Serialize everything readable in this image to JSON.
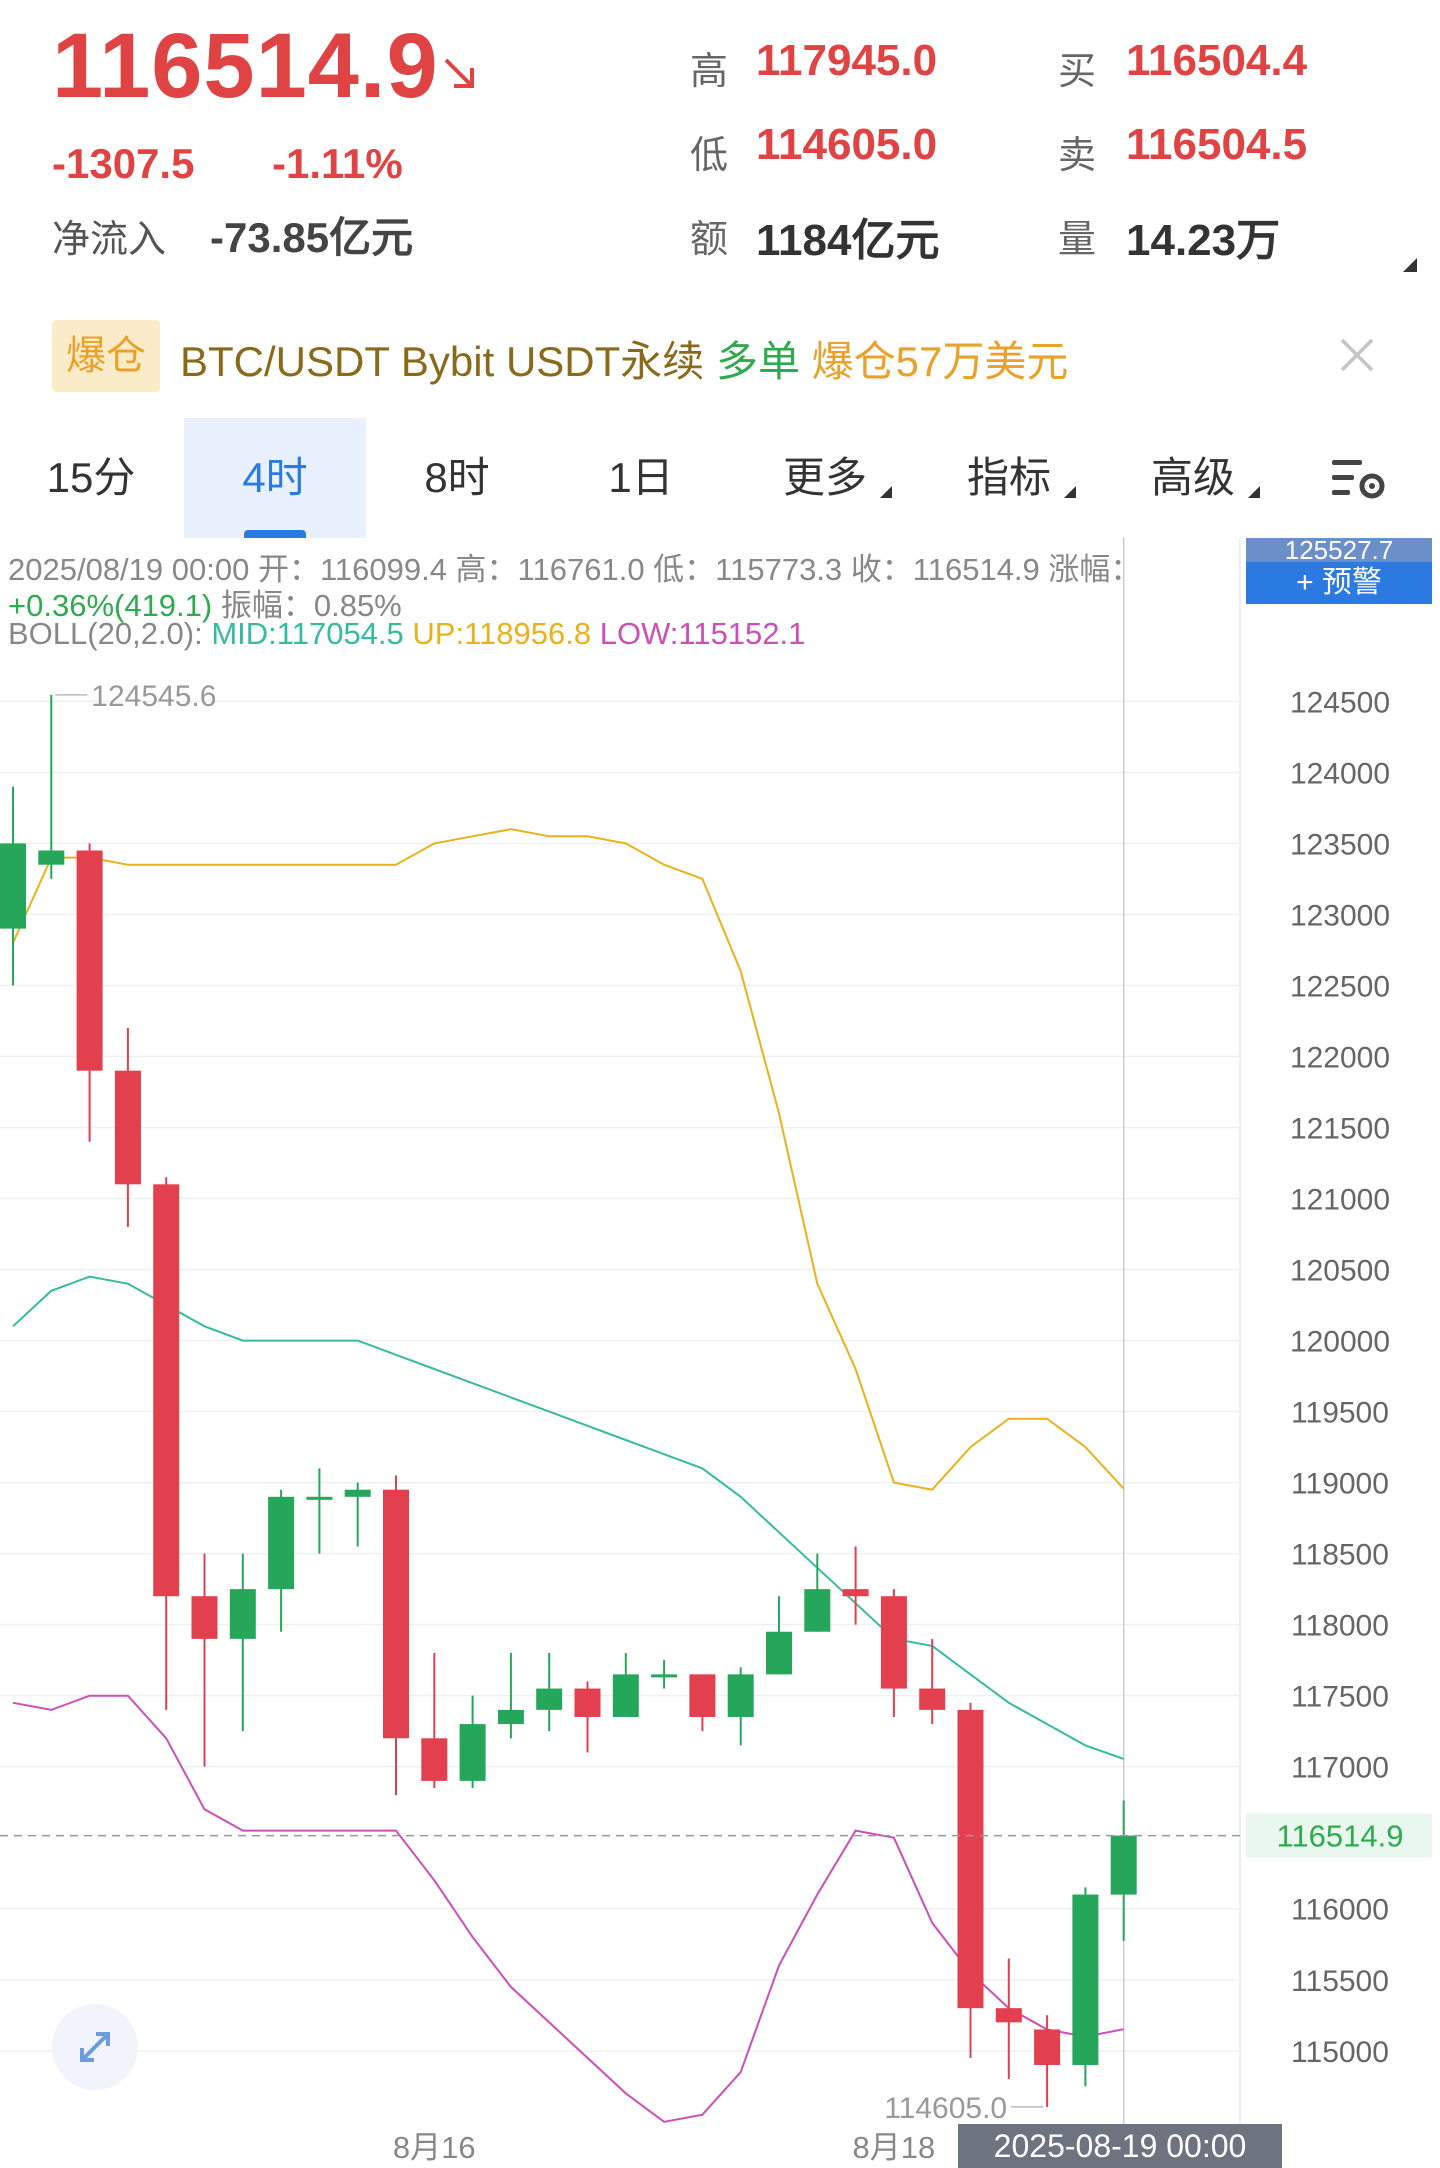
{
  "quote": {
    "price": "116514.9",
    "change": "-1307.5",
    "change_pct": "-1.11%",
    "inflow_label": "净流入",
    "inflow_value": "-73.85亿元",
    "high_label": "高",
    "high": "117945.0",
    "low_label": "低",
    "low": "114605.0",
    "amount_label": "额",
    "amount": "1184亿元",
    "bid_label": "买",
    "bid": "116504.4",
    "ask_label": "卖",
    "ask": "116504.5",
    "volume_label": "量",
    "volume": "14.23万",
    "trend_icon": "arrow-down-right-icon"
  },
  "banner": {
    "badge": "爆仓",
    "pair": "BTC/USDT Bybit USDT永续",
    "side": "多单",
    "amount": "爆仓57万美元",
    "close_icon": "close-icon"
  },
  "tabs": [
    {
      "label": "15分",
      "active": false
    },
    {
      "label": "4时",
      "active": true
    },
    {
      "label": "8时",
      "active": false
    },
    {
      "label": "1日",
      "active": false
    },
    {
      "label": "更多",
      "active": false,
      "dropdown": true
    },
    {
      "label": "指标",
      "active": false,
      "dropdown": true
    },
    {
      "label": "高级",
      "active": false,
      "dropdown": true
    }
  ],
  "info": {
    "line1": "2025/08/19 00:00 开：116099.4 高：116761.0 低：115773.3 收：116514.9 涨幅：",
    "pct": "+0.36%(419.1)",
    "amplitude": " 振幅：0.85%",
    "boll_prefix": "BOLL(20,2.0): ",
    "boll_mid": "MID:117054.5",
    "boll_up": "UP:118956.8",
    "boll_low": "LOW:115152.1",
    "alert_button": "+ 预警",
    "alert_top_value": "125527.7"
  },
  "chart_data": {
    "type": "candlestick",
    "y_range": [
      114400,
      125650
    ],
    "y_ticks": [
      124500,
      124000,
      123500,
      123000,
      122500,
      122000,
      121500,
      121000,
      120500,
      120000,
      119500,
      119000,
      118500,
      118000,
      117500,
      117000,
      116000,
      115500,
      115000
    ],
    "current_price": 116514.9,
    "current_price_label": "116514.9",
    "max_label": "124545.6",
    "min_label": "114605.0",
    "x_labels": [
      {
        "label": "8月16",
        "index": 11
      },
      {
        "label": "8月18",
        "index": 23
      }
    ],
    "crosshair_label": "2025-08-19 00:00",
    "candles": [
      {
        "o": 122900,
        "h": 123900,
        "l": 122500,
        "c": 123500
      },
      {
        "o": 123350,
        "h": 124545.6,
        "l": 123250,
        "c": 123450
      },
      {
        "o": 123450,
        "h": 123500,
        "l": 121400,
        "c": 121900
      },
      {
        "o": 121900,
        "h": 122200,
        "l": 120800,
        "c": 121100
      },
      {
        "o": 121100,
        "h": 121150,
        "l": 117400,
        "c": 118200
      },
      {
        "o": 118200,
        "h": 118500,
        "l": 117000,
        "c": 117900
      },
      {
        "o": 117900,
        "h": 118500,
        "l": 117250,
        "c": 118250
      },
      {
        "o": 118250,
        "h": 118950,
        "l": 117950,
        "c": 118900
      },
      {
        "o": 118900,
        "h": 119100,
        "l": 118500,
        "c": 118900
      },
      {
        "o": 118900,
        "h": 119000,
        "l": 118550,
        "c": 118950
      },
      {
        "o": 118950,
        "h": 119050,
        "l": 116800,
        "c": 117200
      },
      {
        "o": 117200,
        "h": 117800,
        "l": 116850,
        "c": 116900
      },
      {
        "o": 116900,
        "h": 117500,
        "l": 116850,
        "c": 117300
      },
      {
        "o": 117300,
        "h": 117800,
        "l": 117200,
        "c": 117400
      },
      {
        "o": 117400,
        "h": 117800,
        "l": 117250,
        "c": 117550
      },
      {
        "o": 117550,
        "h": 117600,
        "l": 117100,
        "c": 117350
      },
      {
        "o": 117350,
        "h": 117800,
        "l": 117350,
        "c": 117650
      },
      {
        "o": 117650,
        "h": 117750,
        "l": 117550,
        "c": 117650
      },
      {
        "o": 117650,
        "h": 117650,
        "l": 117250,
        "c": 117350
      },
      {
        "o": 117350,
        "h": 117700,
        "l": 117150,
        "c": 117650
      },
      {
        "o": 117650,
        "h": 118200,
        "l": 117650,
        "c": 117950
      },
      {
        "o": 117950,
        "h": 118500,
        "l": 117950,
        "c": 118250
      },
      {
        "o": 118250,
        "h": 118550,
        "l": 118000,
        "c": 118200
      },
      {
        "o": 118200,
        "h": 118250,
        "l": 117350,
        "c": 117550
      },
      {
        "o": 117550,
        "h": 117900,
        "l": 117300,
        "c": 117400
      },
      {
        "o": 117400,
        "h": 117450,
        "l": 114950,
        "c": 115300
      },
      {
        "o": 115300,
        "h": 115650,
        "l": 114800,
        "c": 115200
      },
      {
        "o": 115150,
        "h": 115250,
        "l": 114605,
        "c": 114900
      },
      {
        "o": 114900,
        "h": 116150,
        "l": 114750,
        "c": 116100
      },
      {
        "o": 116099.4,
        "h": 116761,
        "l": 115773.3,
        "c": 116514.9
      }
    ],
    "boll_up": [
      122800,
      123400,
      123400,
      123350,
      123350,
      123350,
      123350,
      123350,
      123350,
      123350,
      123350,
      123500,
      123550,
      123600,
      123550,
      123550,
      123500,
      123350,
      123250,
      122600,
      121600,
      120400,
      119800,
      119000,
      118950,
      119250,
      119450,
      119450,
      119250,
      118956.8
    ],
    "boll_mid": [
      120100,
      120350,
      120450,
      120400,
      120250,
      120100,
      120000,
      120000,
      120000,
      120000,
      119900,
      119800,
      119700,
      119600,
      119500,
      119400,
      119300,
      119200,
      119100,
      118900,
      118650,
      118400,
      118150,
      117900,
      117850,
      117650,
      117450,
      117300,
      117150,
      117054.5
    ],
    "boll_low": [
      117450,
      117400,
      117500,
      117500,
      117200,
      116700,
      116550,
      116550,
      116550,
      116550,
      116550,
      116200,
      115800,
      115450,
      115200,
      114950,
      114700,
      114500,
      114550,
      114850,
      115600,
      116100,
      116550,
      116500,
      115900,
      115550,
      115300,
      115150,
      115100,
      115152.1
    ]
  },
  "colors": {
    "up": "#26a65b",
    "down": "#e2404f",
    "mid": "#36bba0",
    "upper": "#e9b21a",
    "lower": "#cc4fb7",
    "accent": "#2a7ae2"
  }
}
